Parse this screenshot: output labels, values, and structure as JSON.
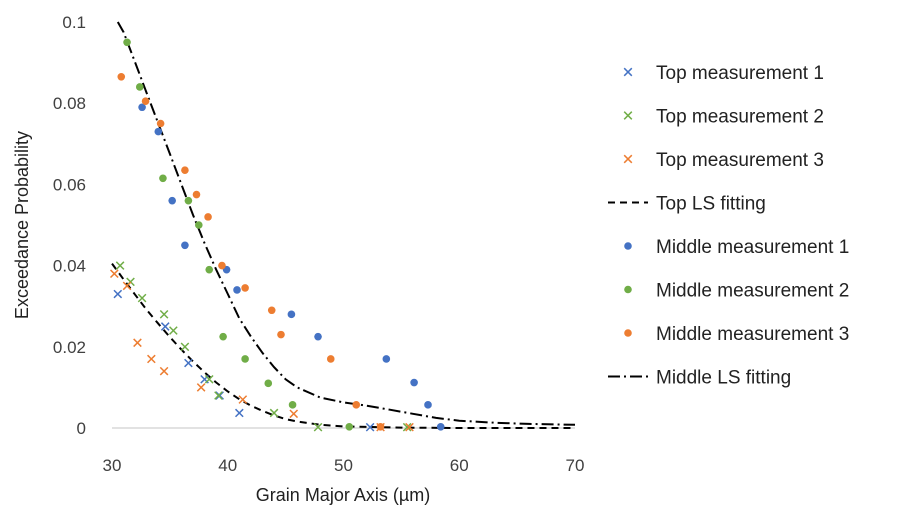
{
  "chart_data": {
    "type": "scatter",
    "xlabel": "Grain Major Axis (µm)",
    "ylabel": "Exceedance Probability",
    "xlim": [
      30,
      70
    ],
    "ylim": [
      0,
      0.1
    ],
    "x_ticks": [
      "30",
      "40",
      "50",
      "60",
      "70"
    ],
    "y_ticks": [
      "0",
      "0.02",
      "0.04",
      "0.06",
      "0.08",
      "0.1"
    ],
    "grid": false,
    "legend_position": "right",
    "series": [
      {
        "name": "Top measurement 1",
        "kind": "marker-x",
        "color": "#4472C4",
        "points": [
          [
            30.5,
            0.033
          ],
          [
            34.6,
            0.025
          ],
          [
            36.6,
            0.016
          ],
          [
            38.0,
            0.012
          ],
          [
            39.3,
            0.008
          ],
          [
            41.0,
            0.0037
          ],
          [
            52.3,
            0.0002
          ]
        ]
      },
      {
        "name": "Top measurement 2",
        "kind": "marker-x",
        "color": "#70AD47",
        "points": [
          [
            30.7,
            0.04
          ],
          [
            31.6,
            0.036
          ],
          [
            32.6,
            0.032
          ],
          [
            34.5,
            0.028
          ],
          [
            35.3,
            0.024
          ],
          [
            36.3,
            0.02
          ],
          [
            38.4,
            0.012
          ],
          [
            39.2,
            0.008
          ],
          [
            44.0,
            0.0037
          ],
          [
            47.8,
            0.0002
          ],
          [
            55.5,
            0.0002
          ]
        ]
      },
      {
        "name": "Top measurement 3",
        "kind": "marker-x",
        "color": "#ED7D31",
        "points": [
          [
            30.2,
            0.038
          ],
          [
            31.3,
            0.035
          ],
          [
            32.2,
            0.021
          ],
          [
            33.4,
            0.017
          ],
          [
            34.5,
            0.014
          ],
          [
            37.7,
            0.01
          ],
          [
            41.3,
            0.007
          ],
          [
            45.7,
            0.0035
          ],
          [
            53.2,
            0.0002
          ],
          [
            55.7,
            0.0002
          ]
        ]
      },
      {
        "name": "Top LS fitting",
        "kind": "line-dashed",
        "color": "#000000",
        "points": [
          [
            30.0,
            0.0405
          ],
          [
            31.0,
            0.0366
          ],
          [
            32.0,
            0.0328
          ],
          [
            33.0,
            0.0291
          ],
          [
            34.0,
            0.0257
          ],
          [
            35.0,
            0.0224
          ],
          [
            36.0,
            0.0193
          ],
          [
            37.0,
            0.0164
          ],
          [
            38.0,
            0.0137
          ],
          [
            39.0,
            0.0112
          ],
          [
            40.0,
            0.009
          ],
          [
            41.0,
            0.0071
          ],
          [
            42.0,
            0.0055
          ],
          [
            43.0,
            0.0042
          ],
          [
            44.0,
            0.0031
          ],
          [
            45.0,
            0.0022
          ],
          [
            46.0,
            0.0016
          ],
          [
            48.0,
            0.0008
          ],
          [
            50.0,
            0.0004
          ],
          [
            55.0,
            0.0001
          ],
          [
            60.0,
            0.0
          ],
          [
            70.0,
            0.0
          ]
        ]
      },
      {
        "name": "Middle measurement 1",
        "kind": "marker-dot",
        "color": "#4472C4",
        "points": [
          [
            32.6,
            0.079
          ],
          [
            34.0,
            0.073
          ],
          [
            35.2,
            0.056
          ],
          [
            36.3,
            0.045
          ],
          [
            39.9,
            0.039
          ],
          [
            40.8,
            0.034
          ],
          [
            45.5,
            0.028
          ],
          [
            47.8,
            0.0225
          ],
          [
            53.7,
            0.017
          ],
          [
            56.1,
            0.0112
          ],
          [
            57.3,
            0.0057
          ],
          [
            58.4,
            0.0003
          ]
        ]
      },
      {
        "name": "Middle measurement 2",
        "kind": "marker-dot",
        "color": "#70AD47",
        "points": [
          [
            31.3,
            0.095
          ],
          [
            32.4,
            0.084
          ],
          [
            34.4,
            0.0615
          ],
          [
            36.6,
            0.056
          ],
          [
            37.5,
            0.05
          ],
          [
            38.4,
            0.039
          ],
          [
            39.6,
            0.0225
          ],
          [
            41.5,
            0.017
          ],
          [
            43.5,
            0.011
          ],
          [
            45.6,
            0.0057
          ],
          [
            50.5,
            0.0003
          ]
        ]
      },
      {
        "name": "Middle measurement 3",
        "kind": "marker-dot",
        "color": "#ED7D31",
        "points": [
          [
            30.8,
            0.0865
          ],
          [
            32.9,
            0.0805
          ],
          [
            34.2,
            0.075
          ],
          [
            36.3,
            0.0635
          ],
          [
            37.3,
            0.0575
          ],
          [
            38.3,
            0.052
          ],
          [
            39.5,
            0.04
          ],
          [
            41.5,
            0.0345
          ],
          [
            43.8,
            0.029
          ],
          [
            44.6,
            0.023
          ],
          [
            48.9,
            0.017
          ],
          [
            51.1,
            0.0057
          ],
          [
            53.2,
            0.0003
          ]
        ]
      },
      {
        "name": "Middle LS fitting",
        "kind": "line-dashdot",
        "color": "#000000",
        "points": [
          [
            30.5,
            0.1
          ],
          [
            31.0,
            0.0975
          ],
          [
            32.0,
            0.09
          ],
          [
            33.0,
            0.0825
          ],
          [
            34.0,
            0.075
          ],
          [
            35.0,
            0.0675
          ],
          [
            36.0,
            0.06
          ],
          [
            37.0,
            0.0525
          ],
          [
            38.0,
            0.0455
          ],
          [
            39.0,
            0.039
          ],
          [
            40.0,
            0.033
          ],
          [
            41.0,
            0.027
          ],
          [
            42.0,
            0.0225
          ],
          [
            43.0,
            0.0185
          ],
          [
            44.0,
            0.015
          ],
          [
            45.0,
            0.012
          ],
          [
            46.0,
            0.01
          ],
          [
            48.0,
            0.0075
          ],
          [
            50.0,
            0.0063
          ],
          [
            52.0,
            0.0055
          ],
          [
            54.0,
            0.0045
          ],
          [
            56.0,
            0.0035
          ],
          [
            58.0,
            0.0025
          ],
          [
            60.0,
            0.0018
          ],
          [
            63.0,
            0.0013
          ],
          [
            66.0,
            0.001
          ],
          [
            70.0,
            0.0008
          ]
        ]
      }
    ]
  }
}
